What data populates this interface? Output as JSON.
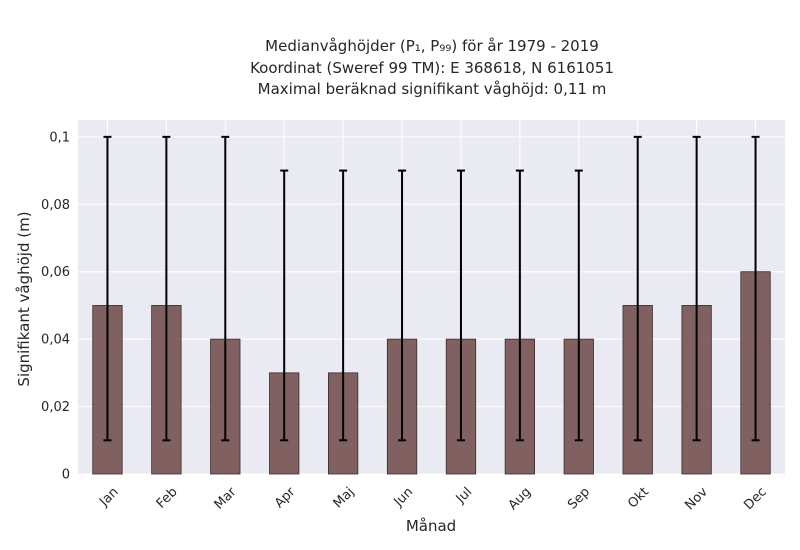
{
  "chart_data": {
    "type": "bar",
    "title_lines": [
      "Medianvåghöjder (P₁, P₉₉) för år 1979 - 2019",
      "Koordinat (Sweref 99 TM): E 368618, N 6161051",
      "Maximal beräknad signifikant våghöjd: 0,11 m"
    ],
    "xlabel": "Månad",
    "ylabel": "Signifikant våghöjd (m)",
    "categories": [
      "Jan",
      "Feb",
      "Mar",
      "Apr",
      "Maj",
      "Jun",
      "Jul",
      "Aug",
      "Sep",
      "Okt",
      "Nov",
      "Dec"
    ],
    "series": [
      {
        "values": [
          0.05,
          0.05,
          0.04,
          0.03,
          0.03,
          0.04,
          0.04,
          0.04,
          0.04,
          0.05,
          0.05,
          0.06
        ],
        "error_low": [
          0.01,
          0.01,
          0.01,
          0.01,
          0.01,
          0.01,
          0.01,
          0.01,
          0.01,
          0.01,
          0.01,
          0.01
        ],
        "error_high": [
          0.1,
          0.1,
          0.1,
          0.09,
          0.09,
          0.09,
          0.09,
          0.09,
          0.09,
          0.1,
          0.1,
          0.1
        ],
        "color": "#7b5858"
      }
    ],
    "ylim": [
      0,
      0.105
    ],
    "yticks": [
      0,
      0.02,
      0.04,
      0.06,
      0.08,
      0.1
    ],
    "ytick_labels": [
      "0",
      "0,02",
      "0,04",
      "0,06",
      "0,08",
      "0,1"
    ],
    "grid": true,
    "legend": "none",
    "colors": {
      "plot_background": "#eaeaf2",
      "grid": "#ffffff",
      "bar": "#7b5858",
      "bar_edge": "#3a2c2c",
      "error_bar": "#000000"
    }
  }
}
